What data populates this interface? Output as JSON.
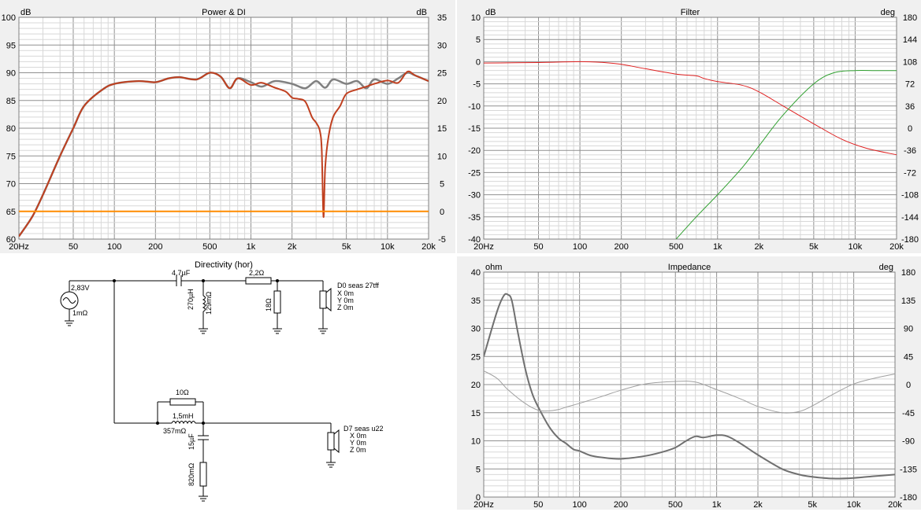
{
  "x_ticks": [
    "20Hz",
    "50",
    "100",
    "200",
    "500",
    "1k",
    "2k",
    "5k",
    "10k",
    "20k"
  ],
  "x_ticks_values": [
    20,
    50,
    100,
    200,
    500,
    1000,
    2000,
    5000,
    10000,
    20000
  ],
  "power": {
    "title": "Power & DI",
    "left_unit": "dB",
    "right_unit": "dB",
    "left_ticks": [
      "100",
      "95",
      "90",
      "85",
      "80",
      "75",
      "70",
      "65",
      "60"
    ],
    "right_ticks": [
      "35",
      "30",
      "25",
      "20",
      "15",
      "10",
      "5",
      "0",
      "-5"
    ],
    "chart_data": {
      "type": "line",
      "title": "Power & DI",
      "xlabel": "",
      "ylabel": "dB",
      "xscale": "log",
      "xlim": [
        20,
        20000
      ],
      "ylim": [
        60,
        100
      ],
      "y2lim": [
        -5,
        35
      ],
      "grid": true,
      "series": [
        {
          "color": "#808080",
          "axis": "left",
          "x": [
            20,
            25,
            30,
            40,
            50,
            60,
            80,
            100,
            150,
            200,
            250,
            300,
            400,
            500,
            600,
            700,
            800,
            1000,
            1200,
            1500,
            2000,
            2500,
            3000,
            3500,
            4000,
            5000,
            6000,
            7000,
            8000,
            10000,
            12000,
            14000,
            16000,
            20000
          ],
          "y": [
            60.5,
            64,
            68,
            75,
            80,
            84,
            86.8,
            88,
            88.5,
            88.3,
            89,
            89.2,
            88.8,
            90,
            89.3,
            87.2,
            89,
            88.3,
            87.5,
            88.5,
            88,
            87.2,
            88.5,
            87.3,
            88.8,
            88,
            88.5,
            87.2,
            88.8,
            88,
            89,
            90,
            89.5,
            88.5
          ]
        },
        {
          "color": "#c04020",
          "axis": "left",
          "x": [
            20,
            25,
            30,
            40,
            50,
            60,
            80,
            100,
            150,
            200,
            250,
            300,
            400,
            500,
            600,
            700,
            800,
            1000,
            1200,
            1500,
            1800,
            2000,
            2200,
            2500,
            2800,
            3000,
            3200,
            3300,
            3400,
            3500,
            3700,
            4000,
            4500,
            5000,
            6000,
            7000,
            8000,
            10000,
            12000,
            14000,
            16000,
            20000
          ],
          "y": [
            60.5,
            64,
            68,
            75,
            80,
            84,
            86.8,
            88,
            88.5,
            88.3,
            89,
            89.2,
            88.8,
            90,
            89.3,
            87.2,
            89,
            87.8,
            88.2,
            87.3,
            86.6,
            85.5,
            85.3,
            84.8,
            82,
            81,
            79.5,
            76,
            64,
            73,
            78.5,
            82,
            84,
            86.2,
            87,
            87.5,
            88,
            88.6,
            88.2,
            90.2,
            89.5,
            88.5
          ]
        },
        {
          "color": "#ff8c00",
          "axis": "right",
          "x": [
            20,
            20000
          ],
          "y": [
            0,
            0
          ]
        }
      ]
    }
  },
  "filter": {
    "title": "Filter",
    "left_unit": "dB",
    "right_unit": "deg",
    "left_ticks": [
      "10",
      "5",
      "0",
      "-5",
      "-10",
      "-15",
      "-20",
      "-25",
      "-30",
      "-35",
      "-40"
    ],
    "right_ticks": [
      "180",
      "144",
      "108",
      "72",
      "36",
      "0",
      "-36",
      "-72",
      "-108",
      "-144",
      "-180"
    ],
    "chart_data": {
      "type": "line",
      "title": "Filter",
      "xlabel": "",
      "ylabel": "dB",
      "xscale": "log",
      "xlim": [
        20,
        20000
      ],
      "ylim": [
        -40,
        10
      ],
      "y2lim": [
        -180,
        180
      ],
      "grid": true,
      "series": [
        {
          "color": "#e02020",
          "axis": "left",
          "x": [
            20,
            50,
            100,
            150,
            200,
            300,
            500,
            700,
            800,
            1000,
            1500,
            2000,
            3000,
            5000,
            8000,
            12000,
            20000
          ],
          "y": [
            -0.3,
            -0.2,
            0,
            -0.2,
            -0.6,
            -1.6,
            -2.8,
            -3.2,
            -3.8,
            -4.5,
            -5.3,
            -6.8,
            -10,
            -14,
            -17.5,
            -19.5,
            -21
          ]
        },
        {
          "color": "#30a030",
          "axis": "left",
          "x": [
            500,
            700,
            1000,
            1500,
            2000,
            3000,
            5000,
            7000,
            10000,
            14000,
            20000
          ],
          "y": [
            -40,
            -35,
            -30,
            -24,
            -19,
            -12,
            -5,
            -2.5,
            -2,
            -2,
            -2
          ]
        }
      ]
    }
  },
  "impedance": {
    "title": "Impedance",
    "left_unit": "ohm",
    "right_unit": "deg",
    "left_ticks": [
      "40",
      "35",
      "30",
      "25",
      "20",
      "15",
      "10",
      "5",
      "0"
    ],
    "right_ticks": [
      "180",
      "135",
      "90",
      "45",
      "0",
      "-45",
      "-90",
      "-135",
      "-180"
    ],
    "chart_data": {
      "type": "line",
      "title": "Impedance",
      "xlabel": "",
      "ylabel": "ohm",
      "xscale": "log",
      "xlim": [
        20,
        20000
      ],
      "ylim": [
        0,
        40
      ],
      "y2lim": [
        -180,
        180
      ],
      "grid": true,
      "series": [
        {
          "color": "#707070",
          "axis": "left",
          "x": [
            20,
            25,
            28,
            30,
            32,
            35,
            40,
            45,
            50,
            60,
            70,
            80,
            90,
            100,
            120,
            150,
            200,
            300,
            400,
            500,
            600,
            700,
            800,
            1000,
            1200,
            1500,
            2000,
            3000,
            4000,
            5000,
            7000,
            10000,
            14000,
            20000
          ],
          "y": [
            25,
            33,
            35.8,
            36,
            35,
            30,
            23,
            18.5,
            16,
            12.5,
            10.5,
            9.5,
            8.5,
            8.2,
            7.4,
            7,
            6.8,
            7.3,
            8,
            8.8,
            10,
            10.8,
            10.6,
            11,
            10.8,
            9.5,
            7.5,
            5,
            4,
            3.6,
            3.3,
            3.4,
            3.7,
            4
          ]
        },
        {
          "color": "#a0a0a0",
          "axis": "right",
          "x": [
            20,
            25,
            30,
            40,
            50,
            60,
            70,
            80,
            100,
            150,
            200,
            300,
            500,
            700,
            1000,
            1500,
            2000,
            3000,
            4000,
            5000,
            7000,
            10000,
            14000,
            20000
          ],
          "y": [
            22,
            10,
            -8,
            -30,
            -41,
            -42,
            -40,
            -36,
            -30,
            -18,
            -9,
            1,
            5,
            4,
            -8,
            -23,
            -35,
            -45,
            -43,
            -34,
            -16,
            1,
            10,
            17
          ]
        }
      ]
    }
  },
  "schematic": {
    "title": "Directivity (hor)",
    "source_voltage": "2,83V",
    "source_res": "1mΩ",
    "c1": "4,7µF",
    "l1": "270µH",
    "l1_res": "129mΩ",
    "r1": "2,2Ω",
    "r2": "18Ω",
    "d0_name": "D0 seas 27tff",
    "d0_x": "X 0m",
    "d0_y": "Y 0m",
    "d0_z": "Z 0m",
    "r3": "10Ω",
    "l2": "1,5mH",
    "l2_res": "357mΩ",
    "c2": "15µF",
    "r4": "820mΩ",
    "d7_name": "D7 seas u22",
    "d7_x": "X 0m",
    "d7_y": "Y 0m",
    "d7_z": "Z 0m"
  }
}
